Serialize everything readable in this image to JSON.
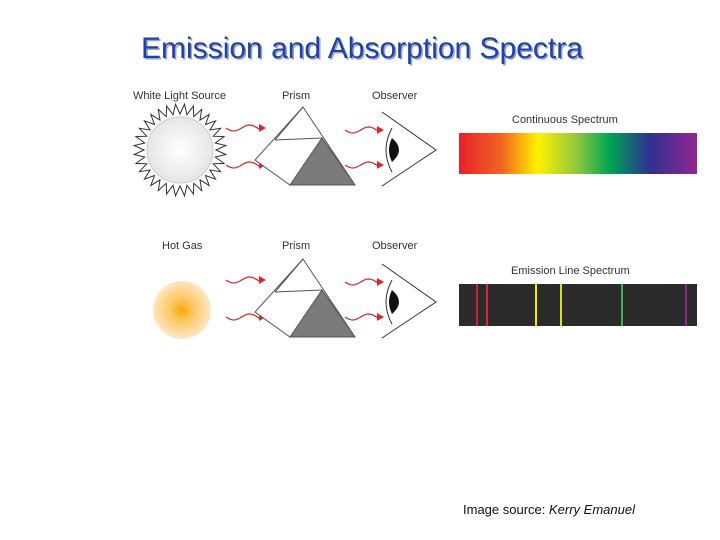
{
  "title": "Emission and Absorption Spectra",
  "rows": [
    {
      "source": "White Light Source",
      "prism": "Prism",
      "observer": "Observer",
      "spectrum": "Continuous Spectrum"
    },
    {
      "source": "Hot Gas",
      "prism": "Prism",
      "observer": "Observer",
      "spectrum": "Emission Line Spectrum"
    }
  ],
  "caption": {
    "prefix": "Image source: ",
    "author": "Kerry Emanuel"
  }
}
